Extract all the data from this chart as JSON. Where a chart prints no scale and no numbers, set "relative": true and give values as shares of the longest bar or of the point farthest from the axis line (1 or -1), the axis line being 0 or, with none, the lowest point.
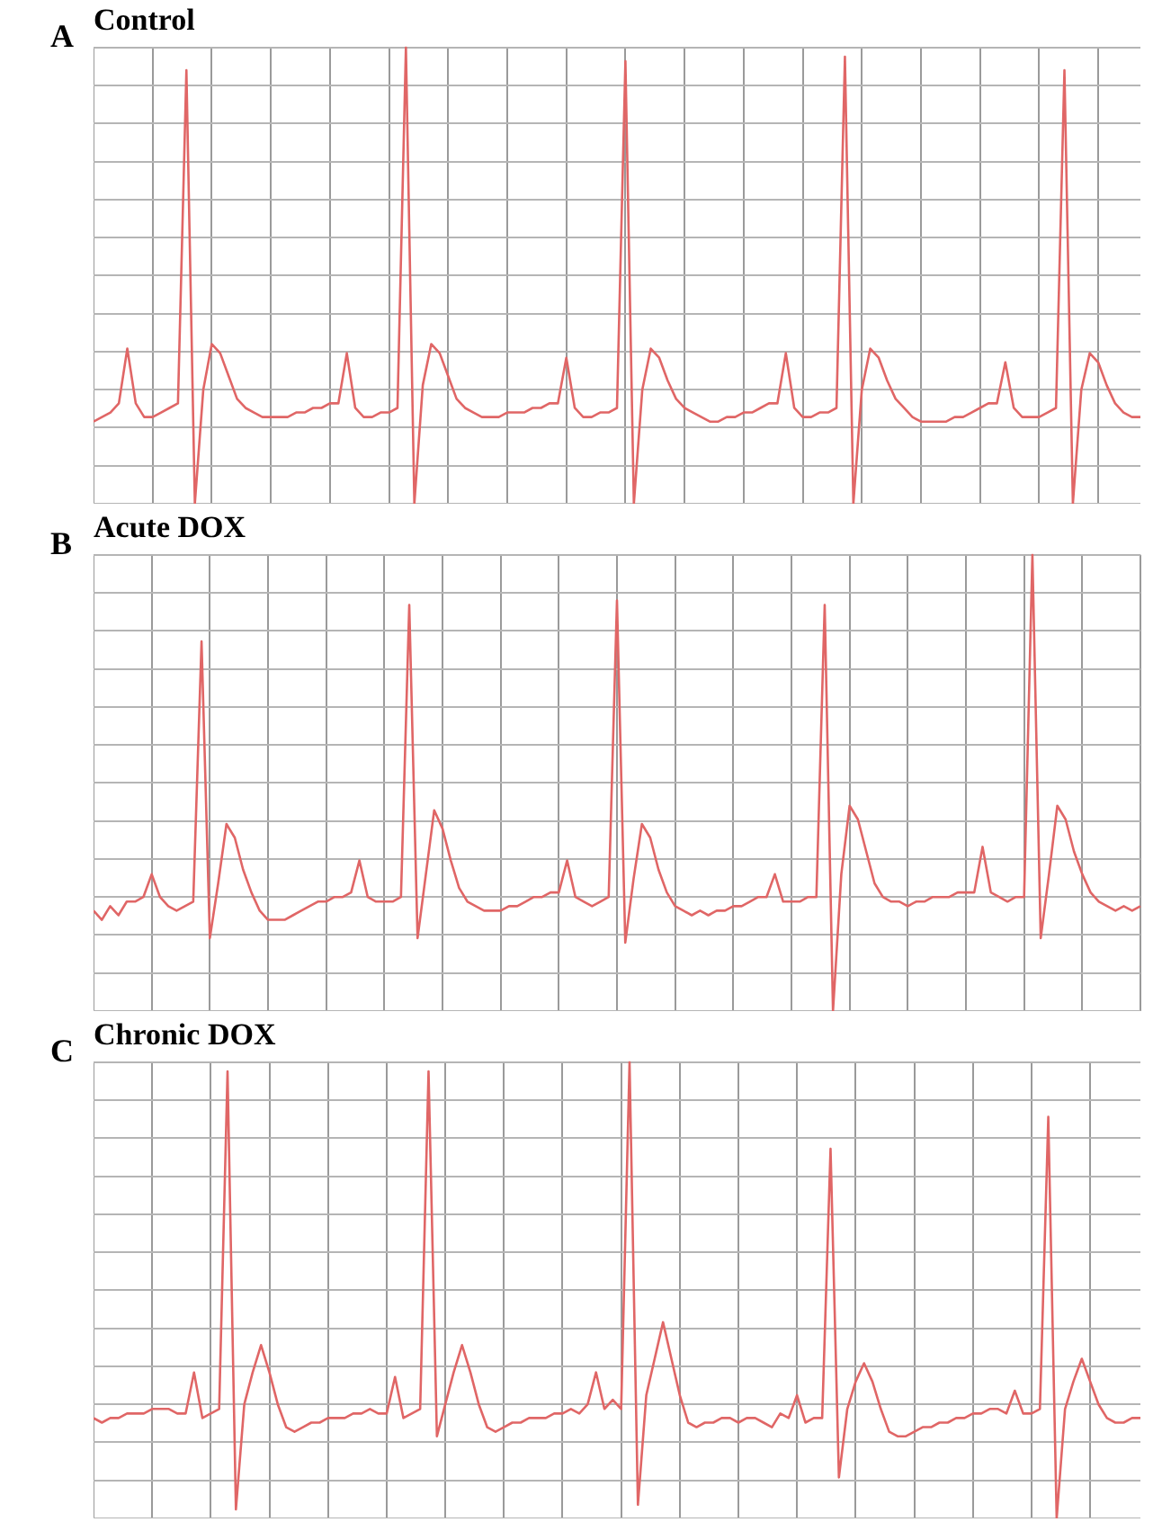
{
  "chart_data": [
    {
      "type": "line",
      "title": "Control",
      "annotations": [
        "A"
      ],
      "relative": true,
      "grid": true,
      "legend": false,
      "marker": "none",
      "line_style": "solid",
      "tick_labels": false,
      "categories": [
        null,
        null,
        null,
        null,
        null,
        null,
        null,
        null,
        null,
        null,
        null,
        null,
        null,
        null,
        null,
        null,
        null,
        null,
        null,
        null,
        null,
        null,
        null,
        null,
        null,
        null,
        null,
        null,
        null,
        null,
        null,
        null,
        null,
        null,
        null,
        null,
        null,
        null,
        null,
        null,
        null,
        null,
        null,
        null,
        null,
        null,
        null,
        null,
        null,
        null,
        null,
        null,
        null,
        null,
        null,
        null,
        null,
        null,
        null,
        null,
        null,
        null,
        null,
        null,
        null,
        null,
        null,
        null,
        null,
        null,
        null,
        null,
        null,
        null,
        null,
        null,
        null,
        null,
        null,
        null,
        null,
        null,
        null,
        null,
        null,
        null,
        null,
        null,
        null,
        null,
        null,
        null,
        null,
        null,
        null,
        null,
        null,
        null,
        null,
        null,
        null,
        null,
        null,
        null,
        null,
        null,
        null,
        null,
        null,
        null,
        null,
        null,
        null,
        null,
        null,
        null,
        null,
        null,
        null,
        null,
        null,
        null,
        null,
        null,
        null
      ],
      "series": [
        {
          "color": "#e06666",
          "values": [
            0.18,
            0.19,
            0.2,
            0.22,
            0.34,
            0.22,
            0.19,
            0.19,
            0.2,
            0.21,
            0.22,
            0.95,
            0,
            0.25,
            0.35,
            0.33,
            0.28,
            0.23,
            0.21,
            0.2,
            0.19,
            0.19,
            0.19,
            0.19,
            0.2,
            0.2,
            0.21,
            0.21,
            0.22,
            0.22,
            0.33,
            0.21,
            0.19,
            0.19,
            0.2,
            0.2,
            0.21,
            1,
            0,
            0.26,
            0.35,
            0.33,
            0.28,
            0.23,
            0.21,
            0.2,
            0.19,
            0.19,
            0.19,
            0.2,
            0.2,
            0.2,
            0.21,
            0.21,
            0.22,
            0.22,
            0.32,
            0.21,
            0.19,
            0.19,
            0.2,
            0.2,
            0.21,
            0.97,
            0,
            0.25,
            0.34,
            0.32,
            0.27,
            0.23,
            0.21,
            0.2,
            0.19,
            0.18,
            0.18,
            0.19,
            0.19,
            0.2,
            0.2,
            0.21,
            0.22,
            0.22,
            0.33,
            0.21,
            0.19,
            0.19,
            0.2,
            0.2,
            0.21,
            0.98,
            0,
            0.25,
            0.34,
            0.32,
            0.27,
            0.23,
            0.21,
            0.19,
            0.18,
            0.18,
            0.18,
            0.18,
            0.19,
            0.19,
            0.2,
            0.21,
            0.22,
            0.22,
            0.31,
            0.21,
            0.19,
            0.19,
            0.19,
            0.2,
            0.21,
            0.95,
            0,
            0.25,
            0.33,
            0.31,
            0.26,
            0.22,
            0.2,
            0.19,
            0.19
          ]
        }
      ]
    },
    {
      "type": "line",
      "title": "Acute DOX",
      "annotations": [
        "B"
      ],
      "relative": true,
      "grid": true,
      "legend": false,
      "marker": "none",
      "line_style": "solid",
      "tick_labels": false,
      "categories": [
        null,
        null,
        null,
        null,
        null,
        null,
        null,
        null,
        null,
        null,
        null,
        null,
        null,
        null,
        null,
        null,
        null,
        null,
        null,
        null,
        null,
        null,
        null,
        null,
        null,
        null,
        null,
        null,
        null,
        null,
        null,
        null,
        null,
        null,
        null,
        null,
        null,
        null,
        null,
        null,
        null,
        null,
        null,
        null,
        null,
        null,
        null,
        null,
        null,
        null,
        null,
        null,
        null,
        null,
        null,
        null,
        null,
        null,
        null,
        null,
        null,
        null,
        null,
        null,
        null,
        null,
        null,
        null,
        null,
        null,
        null,
        null,
        null,
        null,
        null,
        null,
        null,
        null,
        null,
        null,
        null,
        null,
        null,
        null,
        null,
        null,
        null,
        null,
        null,
        null,
        null,
        null,
        null,
        null,
        null,
        null,
        null,
        null,
        null,
        null,
        null,
        null,
        null,
        null,
        null,
        null,
        null,
        null,
        null,
        null,
        null,
        null,
        null,
        null,
        null,
        null,
        null,
        null,
        null,
        null,
        null,
        null,
        null,
        null,
        null,
        null,
        null
      ],
      "series": [
        {
          "color": "#e06666",
          "values": [
            0.22,
            0.2,
            0.23,
            0.21,
            0.24,
            0.24,
            0.25,
            0.3,
            0.25,
            0.23,
            0.22,
            0.23,
            0.24,
            0.81,
            0.16,
            0.28,
            0.41,
            0.38,
            0.31,
            0.26,
            0.22,
            0.2,
            0.2,
            0.2,
            0.21,
            0.22,
            0.23,
            0.24,
            0.24,
            0.25,
            0.25,
            0.26,
            0.33,
            0.25,
            0.24,
            0.24,
            0.24,
            0.25,
            0.89,
            0.16,
            0.3,
            0.44,
            0.4,
            0.33,
            0.27,
            0.24,
            0.23,
            0.22,
            0.22,
            0.22,
            0.23,
            0.23,
            0.24,
            0.25,
            0.25,
            0.26,
            0.26,
            0.33,
            0.25,
            0.24,
            0.23,
            0.24,
            0.25,
            0.9,
            0.15,
            0.29,
            0.41,
            0.38,
            0.31,
            0.26,
            0.23,
            0.22,
            0.21,
            0.22,
            0.21,
            0.22,
            0.22,
            0.23,
            0.23,
            0.24,
            0.25,
            0.25,
            0.3,
            0.24,
            0.24,
            0.24,
            0.25,
            0.25,
            0.89,
            0,
            0.3,
            0.45,
            0.42,
            0.35,
            0.28,
            0.25,
            0.24,
            0.24,
            0.23,
            0.24,
            0.24,
            0.25,
            0.25,
            0.25,
            0.26,
            0.26,
            0.26,
            0.36,
            0.26,
            0.25,
            0.24,
            0.25,
            0.25,
            1,
            0.16,
            0.3,
            0.45,
            0.42,
            0.35,
            0.3,
            0.26,
            0.24,
            0.23,
            0.22,
            0.23,
            0.22,
            0.23
          ]
        }
      ]
    },
    {
      "type": "line",
      "title": "Chronic DOX",
      "annotations": [
        "C"
      ],
      "relative": true,
      "grid": true,
      "legend": false,
      "marker": "none",
      "line_style": "solid",
      "tick_labels": false,
      "categories": [
        null,
        null,
        null,
        null,
        null,
        null,
        null,
        null,
        null,
        null,
        null,
        null,
        null,
        null,
        null,
        null,
        null,
        null,
        null,
        null,
        null,
        null,
        null,
        null,
        null,
        null,
        null,
        null,
        null,
        null,
        null,
        null,
        null,
        null,
        null,
        null,
        null,
        null,
        null,
        null,
        null,
        null,
        null,
        null,
        null,
        null,
        null,
        null,
        null,
        null,
        null,
        null,
        null,
        null,
        null,
        null,
        null,
        null,
        null,
        null,
        null,
        null,
        null,
        null,
        null,
        null,
        null,
        null,
        null,
        null,
        null,
        null,
        null,
        null,
        null,
        null,
        null,
        null,
        null,
        null,
        null,
        null,
        null,
        null,
        null,
        null,
        null,
        null,
        null,
        null,
        null,
        null,
        null,
        null,
        null,
        null,
        null,
        null,
        null,
        null,
        null,
        null,
        null,
        null,
        null,
        null,
        null,
        null,
        null,
        null,
        null,
        null,
        null,
        null,
        null,
        null,
        null,
        null,
        null,
        null,
        null,
        null,
        null,
        null,
        null,
        null
      ],
      "series": [
        {
          "color": "#e06666",
          "values": [
            0.22,
            0.21,
            0.22,
            0.22,
            0.23,
            0.23,
            0.23,
            0.24,
            0.24,
            0.24,
            0.23,
            0.23,
            0.32,
            0.22,
            0.23,
            0.24,
            0.98,
            0.02,
            0.25,
            0.32,
            0.38,
            0.32,
            0.25,
            0.2,
            0.19,
            0.2,
            0.21,
            0.21,
            0.22,
            0.22,
            0.22,
            0.23,
            0.23,
            0.24,
            0.23,
            0.23,
            0.31,
            0.22,
            0.23,
            0.24,
            0.98,
            0.18,
            0.25,
            0.32,
            0.38,
            0.32,
            0.25,
            0.2,
            0.19,
            0.2,
            0.21,
            0.21,
            0.22,
            0.22,
            0.22,
            0.23,
            0.23,
            0.24,
            0.23,
            0.25,
            0.32,
            0.24,
            0.26,
            0.24,
            1,
            0.03,
            0.27,
            0.35,
            0.43,
            0.35,
            0.27,
            0.21,
            0.2,
            0.21,
            0.21,
            0.22,
            0.22,
            0.21,
            0.22,
            0.22,
            0.21,
            0.2,
            0.23,
            0.22,
            0.27,
            0.21,
            0.22,
            0.22,
            0.81,
            0.09,
            0.24,
            0.3,
            0.34,
            0.3,
            0.24,
            0.19,
            0.18,
            0.18,
            0.19,
            0.2,
            0.2,
            0.21,
            0.21,
            0.22,
            0.22,
            0.23,
            0.23,
            0.24,
            0.24,
            0.23,
            0.28,
            0.23,
            0.23,
            0.24,
            0.88,
            0,
            0.24,
            0.3,
            0.35,
            0.3,
            0.25,
            0.22,
            0.21,
            0.21,
            0.22,
            0.22
          ]
        }
      ]
    }
  ]
}
